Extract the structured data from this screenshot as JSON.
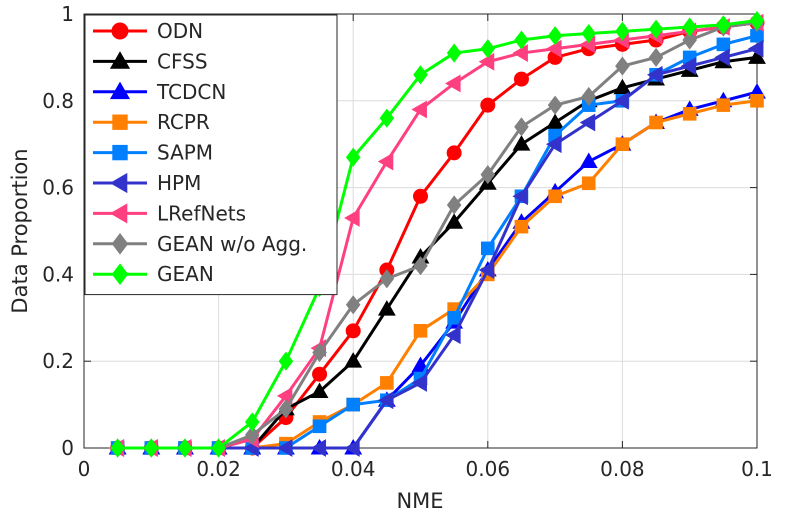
{
  "chart_data": {
    "type": "line",
    "xlabel": "NME",
    "ylabel": "Data Proportion",
    "xlim": [
      0,
      0.1
    ],
    "ylim": [
      0,
      1
    ],
    "grid": true,
    "legend_position": "top-left",
    "xticks": [
      0,
      0.02,
      0.04,
      0.06,
      0.08,
      0.1
    ],
    "xtick_labels": [
      "0",
      "0.02",
      "0.04",
      "0.06",
      "0.08",
      "0.1"
    ],
    "yticks": [
      0,
      0.2,
      0.4,
      0.6,
      0.8,
      1
    ],
    "ytick_labels": [
      "0",
      "0.2",
      "0.4",
      "0.6",
      "0.8",
      "1"
    ],
    "x": [
      0.005,
      0.01,
      0.015,
      0.02,
      0.025,
      0.03,
      0.035,
      0.04,
      0.045,
      0.05,
      0.055,
      0.06,
      0.065,
      0.07,
      0.075,
      0.08,
      0.085,
      0.09,
      0.095,
      0.1
    ],
    "series": [
      {
        "name": "ODN",
        "color": "#ff0000",
        "marker": "circle",
        "values": [
          0,
          0,
          0,
          0,
          0,
          0.07,
          0.17,
          0.27,
          0.41,
          0.58,
          0.68,
          0.79,
          0.85,
          0.9,
          0.92,
          0.93,
          0.94,
          0.96,
          0.97,
          0.98
        ]
      },
      {
        "name": "CFSS",
        "color": "#000000",
        "marker": "triangle-up",
        "values": [
          0,
          0,
          0,
          0,
          0,
          0.09,
          0.13,
          0.2,
          0.32,
          0.44,
          0.52,
          0.61,
          0.7,
          0.75,
          0.8,
          0.83,
          0.85,
          0.87,
          0.89,
          0.9
        ]
      },
      {
        "name": "TCDCN",
        "color": "#0000ff",
        "marker": "triangle-up",
        "values": [
          0,
          0,
          0,
          0,
          0,
          0,
          0,
          0,
          0.11,
          0.19,
          0.29,
          0.41,
          0.52,
          0.59,
          0.66,
          0.7,
          0.75,
          0.78,
          0.8,
          0.82
        ]
      },
      {
        "name": "RCPR",
        "color": "#ff8000",
        "marker": "square",
        "values": [
          0,
          0,
          0,
          0,
          0,
          0.01,
          0.06,
          0.1,
          0.15,
          0.27,
          0.32,
          0.4,
          0.51,
          0.58,
          0.61,
          0.7,
          0.75,
          0.77,
          0.79,
          0.8
        ]
      },
      {
        "name": "SAPM",
        "color": "#0080ff",
        "marker": "square",
        "values": [
          0,
          0,
          0,
          0,
          0,
          0,
          0.05,
          0.1,
          0.11,
          0.16,
          0.3,
          0.46,
          0.58,
          0.72,
          0.79,
          0.8,
          0.86,
          0.9,
          0.93,
          0.95
        ]
      },
      {
        "name": "HPM",
        "color": "#3333cc",
        "marker": "triangle-left",
        "values": [
          0,
          0,
          0,
          0,
          0,
          0,
          0,
          0,
          0.11,
          0.15,
          0.26,
          0.41,
          0.58,
          0.7,
          0.75,
          0.8,
          0.86,
          0.88,
          0.9,
          0.92
        ]
      },
      {
        "name": "LRefNets",
        "color": "#ff4080",
        "marker": "triangle-left",
        "values": [
          0,
          0,
          0,
          0,
          0.02,
          0.12,
          0.23,
          0.53,
          0.66,
          0.78,
          0.84,
          0.89,
          0.91,
          0.92,
          0.93,
          0.94,
          0.95,
          0.96,
          0.97,
          0.98
        ]
      },
      {
        "name": "GEAN w/o Agg.",
        "color": "#808080",
        "marker": "diamond",
        "values": [
          0,
          0,
          0,
          0,
          0.03,
          0.09,
          0.22,
          0.33,
          0.39,
          0.42,
          0.56,
          0.63,
          0.74,
          0.79,
          0.81,
          0.88,
          0.9,
          0.94,
          0.97,
          0.98
        ]
      },
      {
        "name": "GEAN",
        "color": "#00ff00",
        "marker": "diamond",
        "values": [
          0,
          0,
          0,
          0,
          0.06,
          0.2,
          0.37,
          0.67,
          0.76,
          0.86,
          0.91,
          0.92,
          0.94,
          0.95,
          0.955,
          0.96,
          0.965,
          0.97,
          0.975,
          0.985
        ]
      }
    ]
  }
}
